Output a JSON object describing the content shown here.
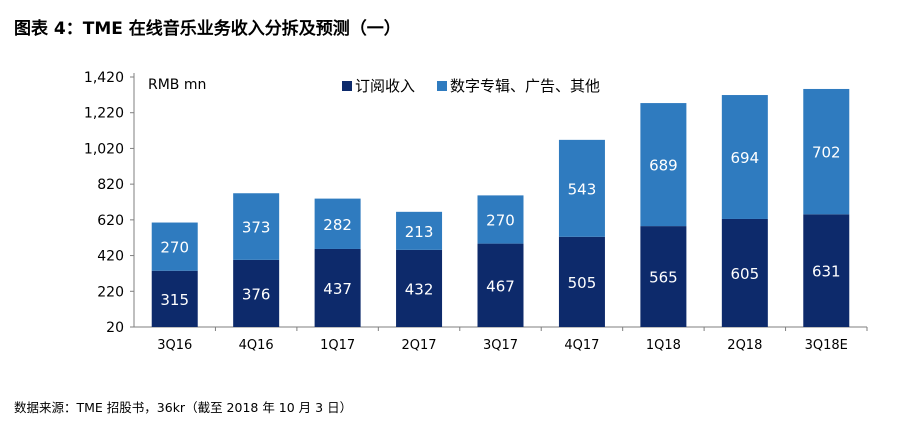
{
  "figure_title": "图表 4：TME 在线音乐业务收入分拆及预测（一）",
  "source_note": "数据来源：TME 招股书，36kr（截至 2018 年 10 月 3 日）",
  "colors": {
    "subscription": "#0d2a6b",
    "other": "#2f7bbf",
    "axis": "#7f7f7f"
  },
  "chart_data": {
    "type": "bar",
    "stacked": true,
    "unit_label": "RMB mn",
    "categories": [
      "3Q16",
      "4Q16",
      "1Q17",
      "2Q17",
      "3Q17",
      "4Q17",
      "1Q18",
      "2Q18",
      "3Q18E"
    ],
    "series": [
      {
        "name": "订阅收入",
        "values": [
          315,
          376,
          437,
          432,
          467,
          505,
          565,
          605,
          631
        ]
      },
      {
        "name": "数字专辑、广告、其他",
        "values": [
          270,
          373,
          282,
          213,
          270,
          543,
          689,
          694,
          702
        ]
      }
    ],
    "ylim": [
      20,
      1420
    ],
    "yticks": [
      "20",
      "220",
      "420",
      "620",
      "820",
      "1,020",
      "1,220",
      "1,420"
    ],
    "ytick_values": [
      20,
      220,
      420,
      620,
      820,
      1020,
      1220,
      1420
    ],
    "legend_position": "top",
    "grid": false,
    "data_labels": true
  }
}
